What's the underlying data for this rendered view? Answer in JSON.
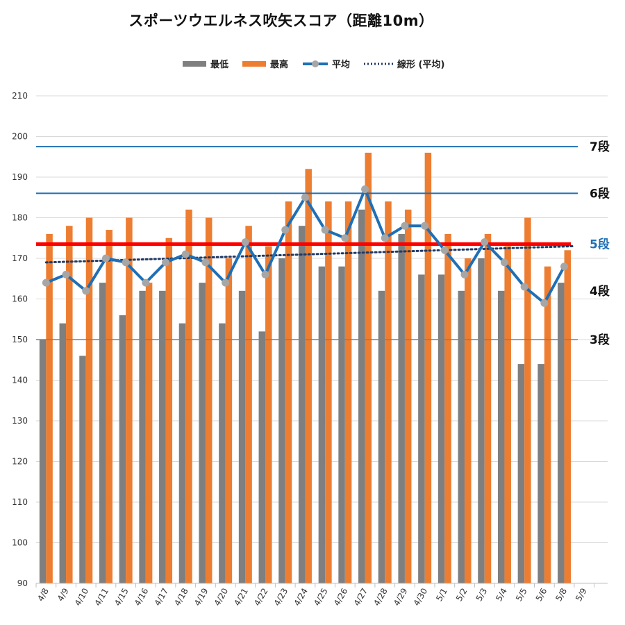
{
  "chart_data": {
    "type": "bar",
    "title": "スポーツウエルネス吹矢スコア（距離10m）",
    "ylim": [
      90,
      210
    ],
    "y_ticks": [
      90,
      100,
      110,
      120,
      130,
      140,
      150,
      160,
      170,
      180,
      190,
      200,
      210
    ],
    "categories": [
      "4/8",
      "4/9",
      "4/10",
      "4/11",
      "4/15",
      "4/16",
      "4/17",
      "4/18",
      "4/19",
      "4/20",
      "4/21",
      "4/22",
      "4/23",
      "4/24",
      "4/25",
      "4/26",
      "4/27",
      "4/28",
      "4/29",
      "4/30",
      "5/1",
      "5/2",
      "5/3",
      "5/4",
      "5/5",
      "5/6",
      "5/8",
      "5/9"
    ],
    "series": [
      {
        "name": "最低",
        "type": "bar",
        "color": "#7f7f7f",
        "values": [
          150,
          154,
          146,
          164,
          156,
          162,
          162,
          154,
          164,
          154,
          162,
          152,
          170,
          178,
          168,
          168,
          182,
          162,
          176,
          166,
          166,
          162,
          170,
          162,
          144,
          144,
          164,
          null
        ]
      },
      {
        "name": "最高",
        "type": "bar",
        "color": "#ed7d31",
        "values": [
          176,
          178,
          180,
          177,
          180,
          164,
          175,
          182,
          180,
          170,
          178,
          173,
          184,
          192,
          184,
          184,
          196,
          184,
          182,
          196,
          176,
          170,
          176,
          173,
          180,
          168,
          172,
          null
        ]
      },
      {
        "name": "平均",
        "type": "line",
        "color": "#1f6fb5",
        "marker_color": "#a6a6a6",
        "values": [
          164,
          166,
          162,
          170,
          169,
          164,
          169,
          171,
          169,
          164,
          174,
          166,
          177,
          185,
          177,
          175,
          187,
          175,
          178,
          178,
          172,
          166,
          174,
          169,
          163,
          159,
          168,
          null
        ]
      },
      {
        "name": "線形 (平均)",
        "type": "trendline",
        "color": "#1f3864",
        "style": "dotted",
        "from": 169,
        "to": 173
      }
    ],
    "reference_lines": [
      {
        "label": "7段",
        "value": 197.5,
        "color": "#1f6fb5",
        "label_color": "#111111",
        "width": 2
      },
      {
        "label": "6段",
        "value": 186,
        "color": "#1f6fb5",
        "label_color": "#111111",
        "width": 2
      },
      {
        "label": "5段",
        "value": 173.5,
        "color": "#ff0000",
        "label_color": "#1f6fb5",
        "width": 5
      },
      {
        "label": "4段",
        "value": 162,
        "color": null,
        "label_color": "#111111",
        "width": 0
      },
      {
        "label": "3段",
        "value": 150,
        "color": "#808080",
        "label_color": "#111111",
        "width": 1.5
      }
    ],
    "grid": true,
    "legend_position": "top"
  }
}
